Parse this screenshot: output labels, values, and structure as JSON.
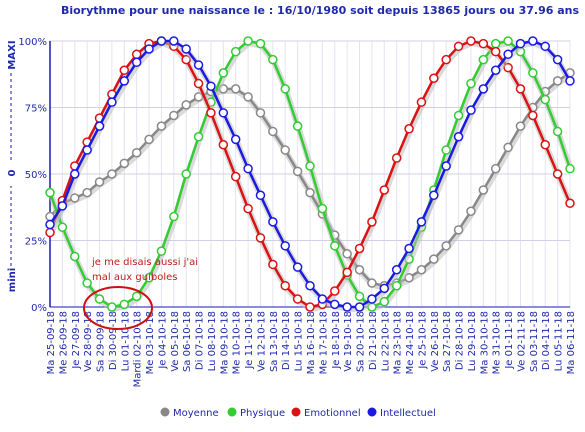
{
  "chart_data": {
    "type": "line",
    "title": "Biorythme pour une naissance le : 16/10/1980 soit depuis 13865 jours ou 37.96 ans",
    "xlabel": "",
    "ylabel": "",
    "side_labels": [
      "mini",
      "0",
      "MAXI"
    ],
    "y_tick_labels": [
      "0%",
      "25%",
      "50%",
      "75%",
      "100%"
    ],
    "ylim": [
      0,
      100
    ],
    "grid": true,
    "legend_position": "bottom",
    "categories": [
      "Ma 25-09-18",
      "Me 26-09-18",
      "Je 27-09-18",
      "Ve 28-09-18",
      "Sa 29-09-18",
      "Di 30-09-18",
      "Lu 01-10-18",
      "Mardi 02-10-18",
      "Me 03-10-18",
      "Je 04-10-18",
      "Ve 05-10-18",
      "Sa 06-10-18",
      "Di 07-10-18",
      "Lu 08-10-18",
      "Ma 09-10-18",
      "Me 10-10-18",
      "Je 11-10-18",
      "Ve 12-10-18",
      "Sa 13-10-18",
      "Di 14-10-18",
      "Lu 15-10-18",
      "Ma 16-10-18",
      "Me 17-10-18",
      "Je 18-10-18",
      "Ve 19-10-18",
      "Sa 20-10-18",
      "Di 21-10-18",
      "Lu 22-10-18",
      "Ma 23-10-18",
      "Me 24-10-18",
      "Je 25-10-18",
      "Ve 26-10-18",
      "Sa 27-10-18",
      "Di 28-10-18",
      "Lu 29-10-18",
      "Ma 30-10-18",
      "Me 31-10-18",
      "Je 01-11-18",
      "Ve 02-11-18",
      "Sa 03-11-18",
      "Di 04-11-18",
      "Lu 05-11-18",
      "Ma 06-11-18"
    ],
    "series": [
      {
        "name": "Moyenne",
        "color": "#888888",
        "values": [
          34,
          39,
          41,
          43,
          47,
          50,
          54,
          58,
          63,
          68,
          72,
          76,
          79,
          81,
          82,
          82,
          79,
          73,
          66,
          59,
          51,
          43,
          35,
          27,
          20,
          14,
          9,
          8,
          9,
          11,
          14,
          18,
          23,
          29,
          36,
          44,
          52,
          60,
          68,
          75,
          81,
          85,
          88
        ]
      },
      {
        "name": "Physique",
        "color": "#33cc33",
        "values": [
          43,
          30,
          19,
          9,
          3,
          0,
          1,
          4,
          11,
          21,
          34,
          50,
          64,
          77,
          88,
          96,
          100,
          99,
          93,
          82,
          68,
          53,
          37,
          23,
          12,
          4,
          0,
          2,
          8,
          18,
          30,
          44,
          59,
          72,
          84,
          93,
          99,
          100,
          96,
          88,
          78,
          66,
          52
        ]
      },
      {
        "name": "Emotionnel",
        "color": "#dd1111",
        "values": [
          28,
          40,
          53,
          62,
          71,
          80,
          89,
          95,
          99,
          100,
          98,
          93,
          84,
          73,
          61,
          49,
          37,
          26,
          16,
          8,
          3,
          0,
          1,
          6,
          13,
          22,
          32,
          44,
          56,
          67,
          77,
          86,
          93,
          98,
          100,
          99,
          96,
          90,
          82,
          72,
          61,
          50,
          39
        ]
      },
      {
        "name": "Intellectuel",
        "color": "#1a1ae0",
        "values": [
          31,
          38,
          50,
          59,
          68,
          77,
          85,
          92,
          97,
          100,
          100,
          97,
          91,
          83,
          73,
          63,
          52,
          42,
          32,
          23,
          15,
          8,
          3,
          1,
          0,
          0,
          3,
          7,
          14,
          22,
          32,
          42,
          53,
          64,
          74,
          82,
          89,
          95,
          99,
          100,
          98,
          93,
          85
        ]
      }
    ],
    "annotation": {
      "line1": "je me disais aussi j'ai",
      "line2": "mal aux guiboles"
    }
  }
}
